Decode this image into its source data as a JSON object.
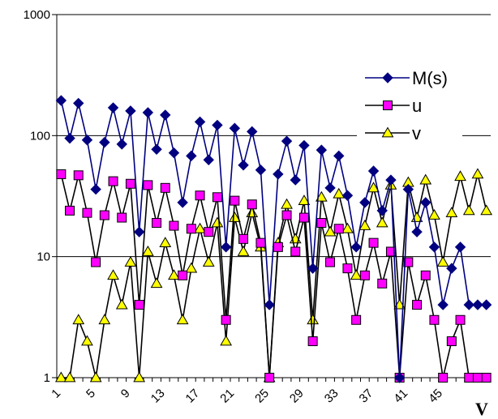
{
  "chart_data": {
    "type": "line",
    "title": "",
    "xlabel": "V",
    "ylabel": "",
    "y_scale": "log",
    "ylim": [
      1,
      1000
    ],
    "y_ticks": [
      "1",
      "10",
      "100",
      "1000"
    ],
    "x_tick_labels": [
      "1",
      "5",
      "9",
      "13",
      "17",
      "21",
      "25",
      "29",
      "33",
      "37",
      "41",
      "45"
    ],
    "grid": "horizontal",
    "legend_position": "top-right",
    "x": [
      1,
      2,
      3,
      4,
      5,
      6,
      7,
      8,
      9,
      10,
      11,
      12,
      13,
      14,
      15,
      16,
      17,
      18,
      19,
      20,
      21,
      22,
      23,
      24,
      25,
      26,
      27,
      28,
      29,
      30,
      31,
      32,
      33,
      34,
      35,
      36,
      37,
      38,
      39,
      40,
      41,
      42,
      43,
      44,
      45,
      46,
      47,
      48,
      49,
      50
    ],
    "series": [
      {
        "name": "M(s)",
        "color": "#000080",
        "marker": "diamond",
        "values": [
          195,
          95,
          185,
          92,
          36,
          88,
          170,
          85,
          160,
          16,
          155,
          77,
          148,
          72,
          28,
          68,
          130,
          63,
          122,
          12,
          115,
          57,
          108,
          52,
          4,
          48,
          90,
          43,
          83,
          8,
          76,
          37,
          68,
          32,
          12,
          28,
          51,
          24,
          43,
          1,
          36,
          16,
          28,
          12,
          4,
          8,
          12,
          4,
          4,
          4
        ]
      },
      {
        "name": "u",
        "color": "#000000",
        "fill": "#ff00ff",
        "marker": "square",
        "values": [
          48,
          24,
          47,
          23,
          9,
          22,
          42,
          21,
          40,
          4,
          39,
          19,
          37,
          18,
          7,
          17,
          32,
          16,
          31,
          3,
          29,
          14,
          27,
          13,
          1,
          12,
          22,
          11,
          21,
          2,
          19,
          9,
          17,
          8,
          3,
          7,
          13,
          6,
          11,
          1,
          9,
          4,
          7,
          3,
          1,
          2,
          3,
          1,
          1,
          1
        ]
      },
      {
        "name": "v",
        "color": "#000000",
        "fill": "#ffff00",
        "marker": "triangle",
        "values": [
          1,
          1,
          3,
          2,
          1,
          3,
          7,
          4,
          9,
          1,
          11,
          6,
          13,
          7,
          3,
          8,
          17,
          9,
          19,
          2,
          21,
          11,
          23,
          12,
          1,
          13,
          27,
          14,
          29,
          3,
          31,
          16,
          33,
          17,
          7,
          18,
          37,
          19,
          39,
          4,
          41,
          21,
          43,
          22,
          9,
          23,
          46,
          24,
          48,
          24
        ]
      }
    ]
  }
}
